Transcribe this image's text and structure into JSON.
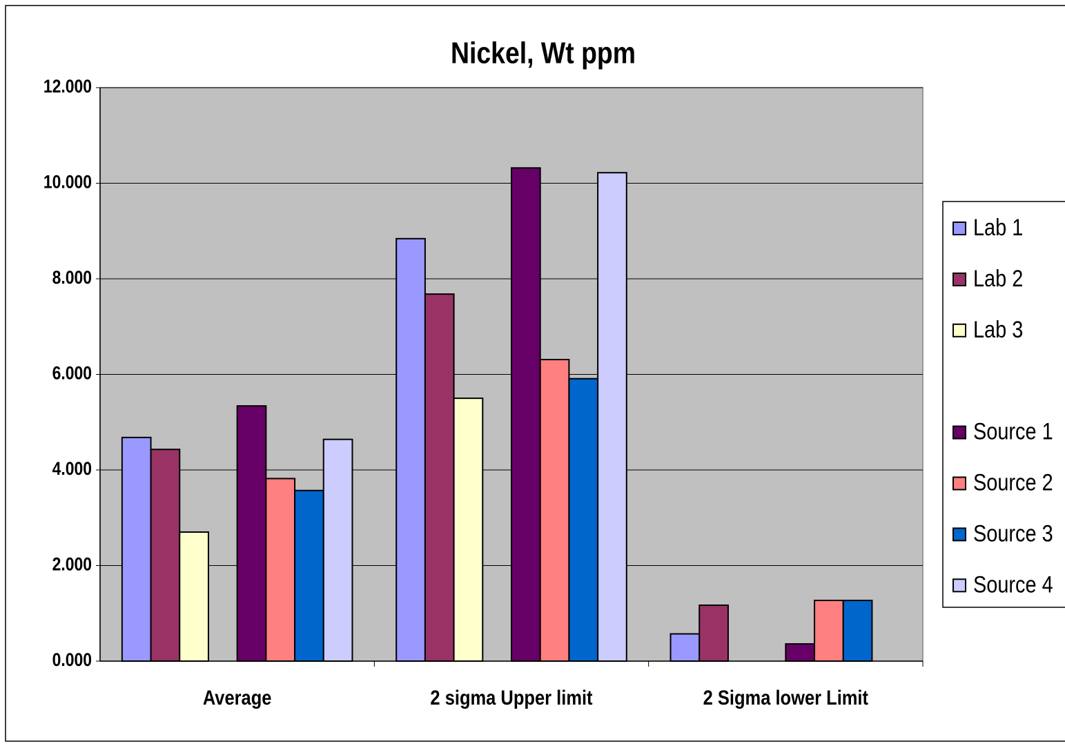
{
  "chart_data": {
    "type": "bar",
    "title": "Nickel, Wt ppm",
    "categories": [
      "Average",
      "2 sigma Upper limit",
      "2 Sigma lower Limit"
    ],
    "series": [
      {
        "name": "Lab 1",
        "color": "#9999ff",
        "values": [
          4.68,
          8.84,
          0.57
        ]
      },
      {
        "name": "Lab 2",
        "color": "#993366",
        "values": [
          4.43,
          7.68,
          1.17
        ]
      },
      {
        "name": "Lab 3",
        "color": "#ffffcc",
        "values": [
          2.7,
          5.5,
          null
        ]
      },
      {
        "name": "Source 1",
        "color": "#660066",
        "values": [
          5.34,
          10.32,
          0.36
        ]
      },
      {
        "name": "Source 2",
        "color": "#ff8080",
        "values": [
          3.82,
          6.31,
          1.27
        ]
      },
      {
        "name": "Source 3",
        "color": "#0066cc",
        "values": [
          3.57,
          5.91,
          1.27
        ]
      },
      {
        "name": "Source 4",
        "color": "#ccccff",
        "values": [
          4.64,
          10.22,
          null
        ]
      }
    ],
    "ylim": [
      0,
      12
    ],
    "yticks": [
      {
        "value": 0,
        "label": "0.000"
      },
      {
        "value": 2,
        "label": "2.000"
      },
      {
        "value": 4,
        "label": "4.000"
      },
      {
        "value": 6,
        "label": "6.000"
      },
      {
        "value": 8,
        "label": "8.000"
      },
      {
        "value": 10,
        "label": "10.000"
      },
      {
        "value": 12,
        "label": "12.000"
      }
    ],
    "grid": true,
    "legend": "right",
    "plot_background": "#c0c0c0"
  }
}
